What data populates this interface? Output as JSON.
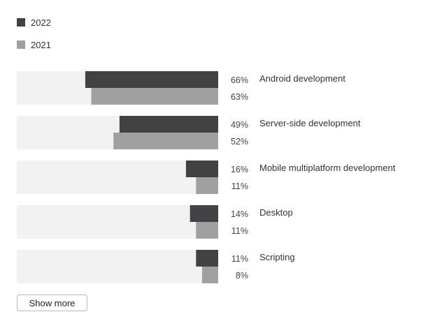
{
  "legend": {
    "items": [
      {
        "label": "2022",
        "color": "#424244"
      },
      {
        "label": "2021",
        "color": "#a0a0a0"
      }
    ]
  },
  "chart_data": {
    "type": "bar",
    "orientation": "horizontal",
    "direction": "right-to-left",
    "categories": [
      "Android development",
      "Server-side development",
      "Mobile multiplatform development",
      "Desktop",
      "Scripting"
    ],
    "series": [
      {
        "name": "2022",
        "values": [
          66,
          49,
          16,
          14,
          11
        ],
        "labels": [
          "66%",
          "49%",
          "16%",
          "14%",
          "11%"
        ],
        "color": "#424244"
      },
      {
        "name": "2021",
        "values": [
          63,
          52,
          11,
          11,
          8
        ],
        "labels": [
          "63%",
          "52%",
          "11%",
          "11%",
          "8%"
        ],
        "color": "#a0a0a0"
      }
    ],
    "xlim": [
      0,
      100
    ],
    "track_color": "#f2f2f2",
    "legend_position": "top-left"
  },
  "actions": {
    "show_more_label": "Show more"
  }
}
